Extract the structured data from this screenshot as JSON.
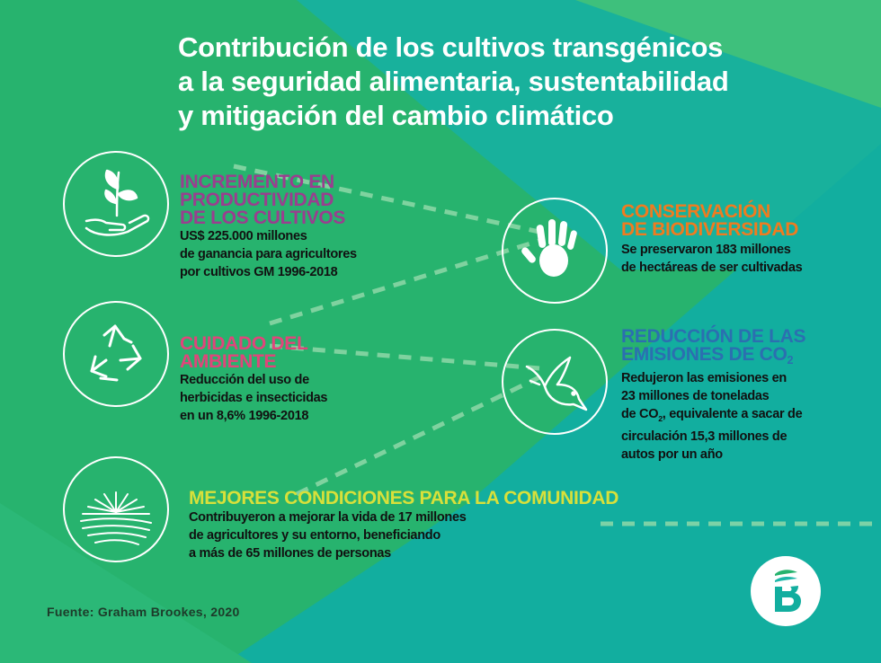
{
  "title": {
    "lines": [
      "Contribución de los cultivos transgénicos",
      "a la seguridad alimentaria, sustentabilidad",
      "y mitigación del cambio climático"
    ]
  },
  "colors": {
    "bg_green": "#27b36e",
    "bg_teal": "#11b0a0",
    "bg_teal_light": "#1fb7a9",
    "purple": "#9a3e8f",
    "pink": "#e0457b",
    "orange": "#f07b1f",
    "blue": "#2b6fb0",
    "yellow": "#d8e03a",
    "dash": "#8fd8a8"
  },
  "sections": {
    "productividad": {
      "icon": "hand-sprout-icon",
      "heading": [
        "INCREMENTO EN",
        "PRODUCTIVIDAD",
        "DE LOS CULTIVOS"
      ],
      "body": [
        "US$ 225.000 millones",
        "de ganancia para agricultores",
        "por cultivos GM 1996-2018"
      ]
    },
    "ambiente": {
      "icon": "recycle-icon",
      "heading": [
        "CUIDADO DEL",
        "AMBIENTE"
      ],
      "body": [
        "Reducción del uso de",
        "herbicidas e insecticidas",
        "en un 8,6% 1996-2018"
      ]
    },
    "comunidad": {
      "icon": "sunrise-field-icon",
      "heading": [
        "MEJORES CONDICIONES PARA LA COMUNIDAD"
      ],
      "body": [
        "Contribuyeron a mejorar la vida de 17 millones",
        "de agricultores y su entorno, beneficiando",
        "a más de 65 millones de personas"
      ]
    },
    "biodiversidad": {
      "icon": "handprint-icon",
      "heading": [
        "CONSERVACIÓN",
        "DE BIODIVERSIDAD"
      ],
      "body": [
        "Se preservaron 183 millones",
        "de hectáreas de ser cultivadas"
      ]
    },
    "emisiones": {
      "icon": "dove-icon",
      "heading_line1": "REDUCCIÓN DE LAS",
      "heading_line2": "EMISIONES DE CO",
      "heading_sub": "2",
      "body_line1": "Redujeron las emisiones en",
      "body_line2": "23 millones de toneladas",
      "body_line3_pre": "de CO",
      "body_line3_sub": "2",
      "body_line3_post": ", equivalente a sacar de",
      "body_line4": "circulación 15,3 millones de",
      "body_line5": "autos por un año"
    }
  },
  "source": "Fuente: Graham Brookes, 2020",
  "logo": {
    "icon": "brand-b-leaf-icon"
  }
}
